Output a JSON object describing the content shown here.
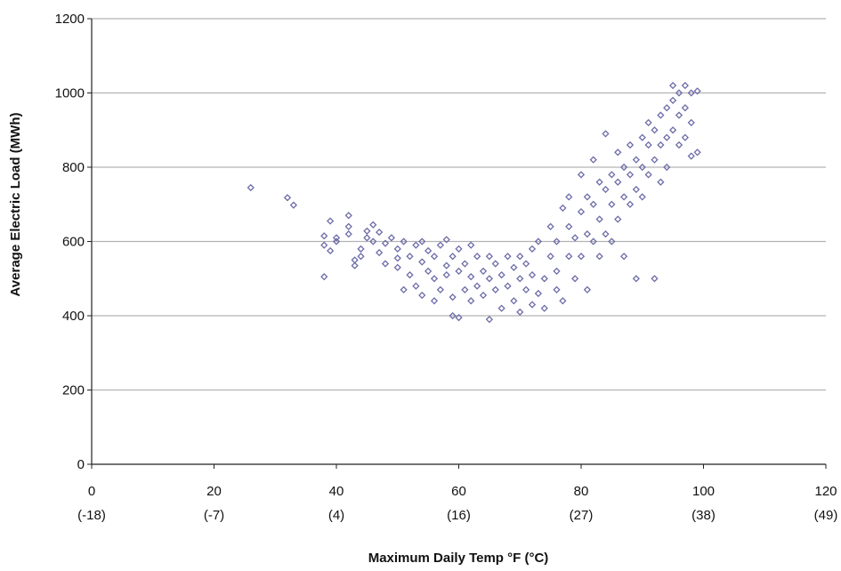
{
  "chart_data": {
    "type": "scatter",
    "title": "",
    "xlabel": "Maximum Daily Temp °F (°C)",
    "ylabel": "Average Electric Load (MWh)",
    "xlim": [
      0,
      120
    ],
    "ylim": [
      0,
      1200
    ],
    "x_ticks": [
      0,
      20,
      40,
      60,
      80,
      100,
      120
    ],
    "x_tick_labels": [
      "0",
      "20",
      "40",
      "60",
      "80",
      "100",
      "120"
    ],
    "x_tick_sublabels": [
      "(-18)",
      "(-7)",
      "(4)",
      "(16)",
      "(27)",
      "(38)",
      "(49)"
    ],
    "y_ticks": [
      0,
      200,
      400,
      600,
      800,
      1000,
      1200
    ],
    "y_tick_labels": [
      "0",
      "200",
      "400",
      "600",
      "800",
      "1000",
      "1200"
    ],
    "grid": "horizontal",
    "marker": "diamond",
    "marker_color": "#6b6ba8",
    "gridline_color": "#b3b3b3",
    "series": [
      {
        "points": [
          [
            26,
            745
          ],
          [
            32,
            718
          ],
          [
            33,
            698
          ],
          [
            38,
            590
          ],
          [
            38,
            615
          ],
          [
            38,
            505
          ],
          [
            39,
            655
          ],
          [
            39,
            575
          ],
          [
            40,
            600
          ],
          [
            40,
            610
          ],
          [
            42,
            670
          ],
          [
            42,
            640
          ],
          [
            42,
            620
          ],
          [
            43,
            550
          ],
          [
            43,
            535
          ],
          [
            44,
            560
          ],
          [
            44,
            580
          ],
          [
            45,
            628
          ],
          [
            45,
            610
          ],
          [
            46,
            645
          ],
          [
            46,
            600
          ],
          [
            47,
            570
          ],
          [
            47,
            625
          ],
          [
            48,
            540
          ],
          [
            48,
            595
          ],
          [
            49,
            610
          ],
          [
            50,
            580
          ],
          [
            50,
            530
          ],
          [
            50,
            555
          ],
          [
            51,
            600
          ],
          [
            51,
            470
          ],
          [
            52,
            560
          ],
          [
            52,
            510
          ],
          [
            53,
            590
          ],
          [
            53,
            480
          ],
          [
            54,
            545
          ],
          [
            54,
            600
          ],
          [
            54,
            455
          ],
          [
            55,
            520
          ],
          [
            55,
            575
          ],
          [
            56,
            440
          ],
          [
            56,
            500
          ],
          [
            56,
            560
          ],
          [
            57,
            590
          ],
          [
            57,
            470
          ],
          [
            58,
            535
          ],
          [
            58,
            510
          ],
          [
            58,
            605
          ],
          [
            59,
            450
          ],
          [
            59,
            560
          ],
          [
            59,
            400
          ],
          [
            60,
            520
          ],
          [
            60,
            580
          ],
          [
            60,
            395
          ],
          [
            61,
            470
          ],
          [
            61,
            540
          ],
          [
            62,
            505
          ],
          [
            62,
            590
          ],
          [
            62,
            440
          ],
          [
            63,
            480
          ],
          [
            63,
            560
          ],
          [
            64,
            520
          ],
          [
            64,
            455
          ],
          [
            65,
            500
          ],
          [
            65,
            560
          ],
          [
            65,
            390
          ],
          [
            66,
            470
          ],
          [
            66,
            540
          ],
          [
            67,
            420
          ],
          [
            67,
            510
          ],
          [
            68,
            560
          ],
          [
            68,
            480
          ],
          [
            69,
            440
          ],
          [
            69,
            530
          ],
          [
            70,
            500
          ],
          [
            70,
            410
          ],
          [
            70,
            560
          ],
          [
            71,
            470
          ],
          [
            71,
            540
          ],
          [
            72,
            430
          ],
          [
            72,
            510
          ],
          [
            72,
            580
          ],
          [
            73,
            460
          ],
          [
            73,
            600
          ],
          [
            74,
            500
          ],
          [
            74,
            420
          ],
          [
            75,
            560
          ],
          [
            75,
            640
          ],
          [
            76,
            470
          ],
          [
            76,
            520
          ],
          [
            76,
            600
          ],
          [
            77,
            690
          ],
          [
            77,
            440
          ],
          [
            78,
            560
          ],
          [
            78,
            640
          ],
          [
            78,
            720
          ],
          [
            79,
            500
          ],
          [
            79,
            610
          ],
          [
            80,
            560
          ],
          [
            80,
            680
          ],
          [
            80,
            780
          ],
          [
            81,
            620
          ],
          [
            81,
            720
          ],
          [
            81,
            470
          ],
          [
            82,
            700
          ],
          [
            82,
            600
          ],
          [
            82,
            820
          ],
          [
            83,
            560
          ],
          [
            83,
            660
          ],
          [
            83,
            760
          ],
          [
            84,
            740
          ],
          [
            84,
            620
          ],
          [
            84,
            890
          ],
          [
            85,
            700
          ],
          [
            85,
            780
          ],
          [
            85,
            600
          ],
          [
            86,
            760
          ],
          [
            86,
            840
          ],
          [
            86,
            660
          ],
          [
            87,
            720
          ],
          [
            87,
            800
          ],
          [
            87,
            560
          ],
          [
            88,
            780
          ],
          [
            88,
            860
          ],
          [
            88,
            700
          ],
          [
            89,
            820
          ],
          [
            89,
            740
          ],
          [
            89,
            500
          ],
          [
            90,
            880
          ],
          [
            90,
            800
          ],
          [
            90,
            720
          ],
          [
            91,
            860
          ],
          [
            91,
            920
          ],
          [
            91,
            780
          ],
          [
            92,
            900
          ],
          [
            92,
            820
          ],
          [
            92,
            500
          ],
          [
            93,
            940
          ],
          [
            93,
            860
          ],
          [
            93,
            760
          ],
          [
            94,
            960
          ],
          [
            94,
            880
          ],
          [
            94,
            800
          ],
          [
            95,
            980
          ],
          [
            95,
            900
          ],
          [
            95,
            1020
          ],
          [
            96,
            1000
          ],
          [
            96,
            940
          ],
          [
            96,
            860
          ],
          [
            97,
            1020
          ],
          [
            97,
            960
          ],
          [
            97,
            880
          ],
          [
            98,
            1000
          ],
          [
            98,
            920
          ],
          [
            98,
            830
          ],
          [
            99,
            1005
          ],
          [
            99,
            840
          ]
        ]
      }
    ]
  }
}
